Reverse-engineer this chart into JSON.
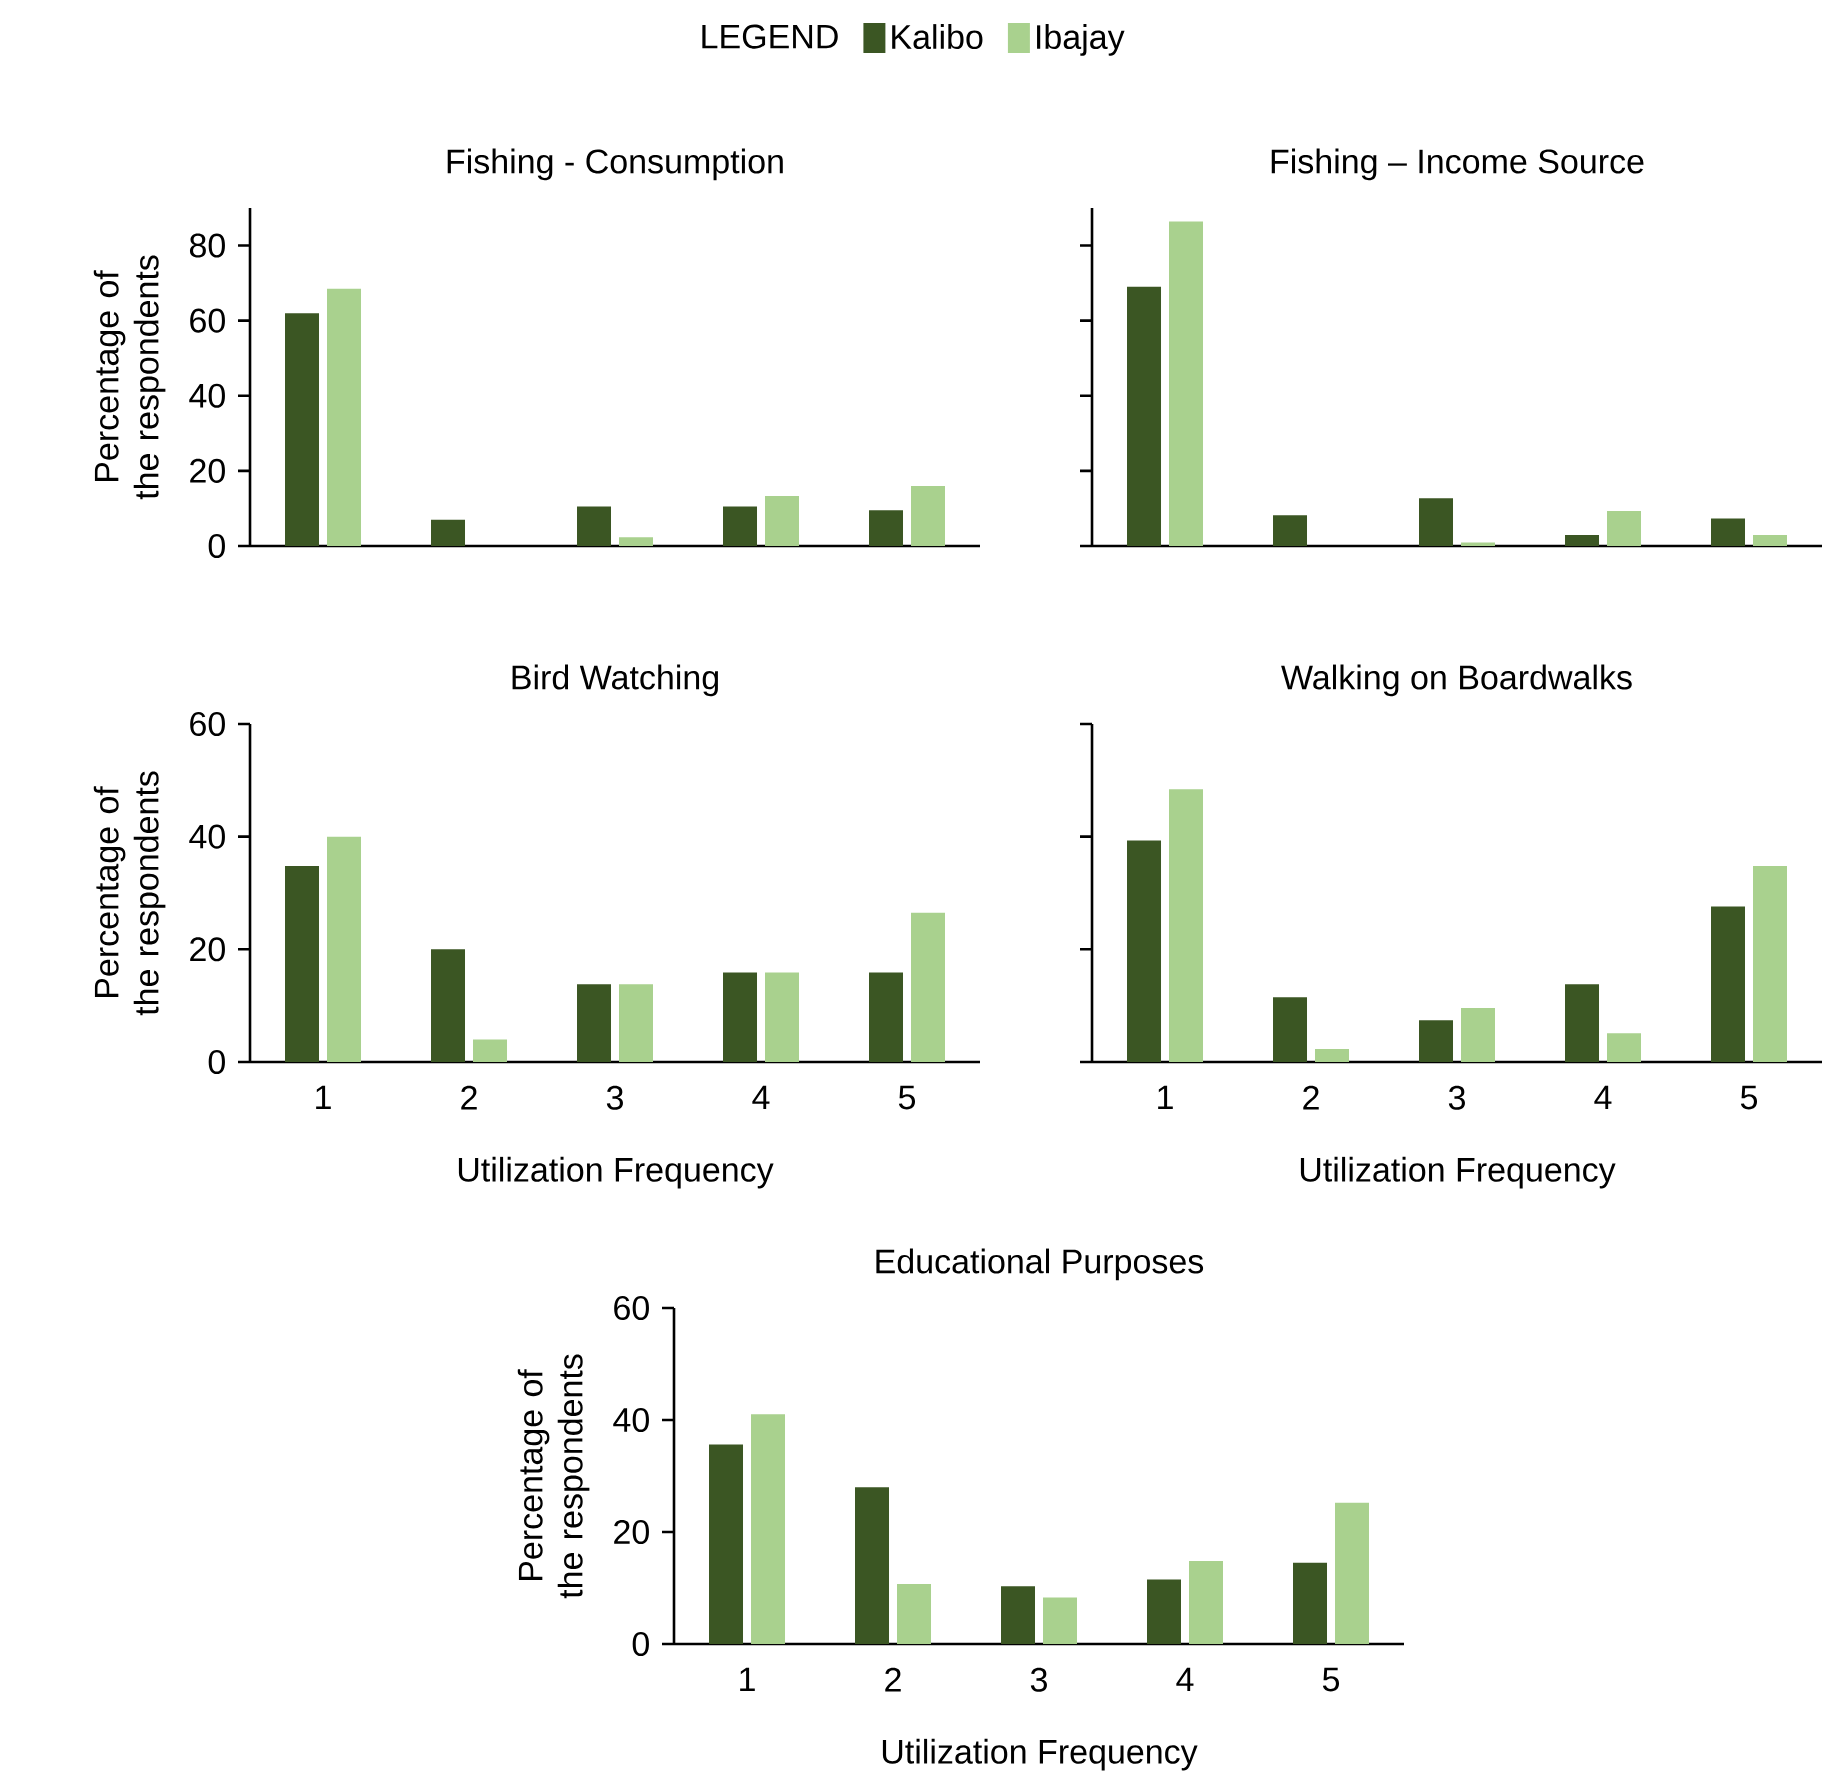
{
  "chart_data": [
    {
      "type": "bar",
      "title": "Fishing - Consumption",
      "ylabel": "Percentage of the respondents",
      "legend_title": "LEGEND",
      "legend": "top",
      "categories": [
        "1",
        "2",
        "3",
        "4",
        "5"
      ],
      "ylim": [
        0,
        90
      ],
      "yticks": [
        0,
        20,
        40,
        60,
        80
      ],
      "tick_labels": "y",
      "series": [
        {
          "name": "Kalibo",
          "color": "#3b5623",
          "values": [
            62,
            7,
            10.5,
            10.5,
            9.5
          ]
        },
        {
          "name": "Ibajay",
          "color": "#a9d18e",
          "values": [
            68.5,
            0,
            2.3,
            13.3,
            16
          ]
        }
      ]
    },
    {
      "type": "bar",
      "title": "Fishing – Income Source",
      "categories": [
        "1",
        "2",
        "3",
        "4",
        "5"
      ],
      "ylim": [
        0,
        90
      ],
      "yticks": [
        0,
        20,
        40,
        60,
        80
      ],
      "tick_labels": false,
      "series": [
        {
          "color": "#3b5623",
          "values": [
            69,
            8.2,
            12.7,
            2.9,
            7.3
          ]
        },
        {
          "color": "#a9d18e",
          "values": [
            86.4,
            0,
            0.9,
            9.3,
            2.9
          ]
        }
      ]
    },
    {
      "type": "bar",
      "title": "Bird Watching",
      "xlabel": "Utilization Frequency",
      "ylabel": "Percentage of the respondents",
      "categories": [
        "1",
        "2",
        "3",
        "4",
        "5"
      ],
      "ylim": [
        0,
        60
      ],
      "yticks": [
        0,
        20,
        40,
        60
      ],
      "series": [
        {
          "color": "#3b5623",
          "values": [
            34.8,
            20,
            13.8,
            15.9,
            15.9
          ]
        },
        {
          "color": "#a9d18e",
          "values": [
            40,
            4,
            13.8,
            15.9,
            26.5
          ]
        }
      ]
    },
    {
      "type": "bar",
      "title": "Walking on Boardwalks",
      "xlabel": "Utilization Frequency",
      "categories": [
        "1",
        "2",
        "3",
        "4",
        "5"
      ],
      "ylim": [
        0,
        60
      ],
      "yticks": [
        0,
        20,
        40,
        60
      ],
      "tick_labels": "x",
      "series": [
        {
          "color": "#3b5623",
          "values": [
            39.3,
            11.5,
            7.4,
            13.8,
            27.6
          ]
        },
        {
          "color": "#a9d18e",
          "values": [
            48.4,
            2.3,
            9.6,
            5.1,
            34.8
          ]
        }
      ]
    },
    {
      "type": "bar",
      "title": "Educational Purposes",
      "xlabel": "Utilization Frequency",
      "ylabel": "Percentage of the respondents",
      "categories": [
        "1",
        "2",
        "3",
        "4",
        "5"
      ],
      "ylim": [
        0,
        60
      ],
      "yticks": [
        0,
        20,
        40,
        60
      ],
      "series": [
        {
          "color": "#3b5623",
          "values": [
            35.6,
            28,
            10.3,
            11.5,
            14.5
          ]
        },
        {
          "color": "#a9d18e",
          "values": [
            41,
            10.7,
            8.3,
            14.8,
            25.2
          ]
        }
      ]
    }
  ]
}
